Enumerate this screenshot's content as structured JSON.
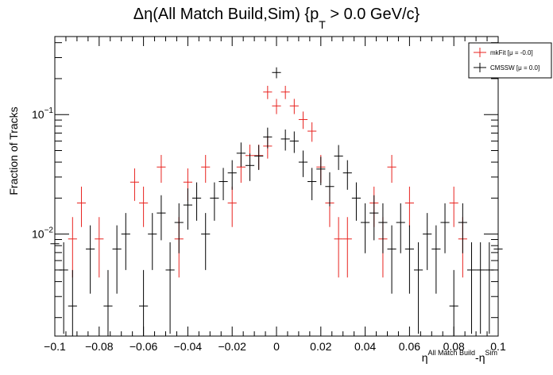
{
  "chart_data": {
    "type": "scatter",
    "title": {
      "prefix": "Δη(All Match Build,Sim) {p",
      "sub": "T",
      "suffix": " > 0.0 GeV/c}"
    },
    "xlabel": {
      "base1": "η",
      "sup1": "All Match Build",
      "mid": "-η",
      "sup2": "Sim"
    },
    "ylabel": "Fraction of Tracks",
    "xlim": [
      -0.1,
      0.1
    ],
    "ylim": [
      0.0014,
      0.45
    ],
    "yscale": "log",
    "x_ticks": [
      "−0.1",
      "−0.08",
      "−0.06",
      "−0.04",
      "−0.02",
      "0",
      "0.02",
      "0.04",
      "0.06",
      "0.08",
      "0.1"
    ],
    "x_tick_values": [
      -0.1,
      -0.08,
      -0.06,
      -0.04,
      -0.02,
      0,
      0.02,
      0.04,
      0.06,
      0.08,
      0.1
    ],
    "y_ticks": [
      {
        "value": 0.1,
        "base": "10",
        "exp": "−1"
      },
      {
        "value": 0.01,
        "base": "10",
        "exp": "−2"
      }
    ],
    "legend_position": "top-right",
    "bin_width": 0.004,
    "series": [
      {
        "name": "mkFit  [μ = -0.0]",
        "color": "#e8231f",
        "points": [
          {
            "x": -0.092,
            "y": 0.0091
          },
          {
            "x": -0.088,
            "y": 0.0182
          },
          {
            "x": -0.08,
            "y": 0.0091
          },
          {
            "x": -0.064,
            "y": 0.0272
          },
          {
            "x": -0.06,
            "y": 0.0182
          },
          {
            "x": -0.052,
            "y": 0.0364
          },
          {
            "x": -0.044,
            "y": 0.0091
          },
          {
            "x": -0.04,
            "y": 0.0272
          },
          {
            "x": -0.032,
            "y": 0.0364
          },
          {
            "x": -0.02,
            "y": 0.0182
          },
          {
            "x": -0.016,
            "y": 0.0364
          },
          {
            "x": -0.012,
            "y": 0.0454
          },
          {
            "x": -0.008,
            "y": 0.0454
          },
          {
            "x": -0.004,
            "y": 0.0545
          },
          {
            "x": -0.004,
            "y": 0.1545
          },
          {
            "x": 0.0,
            "y": 0.1182
          },
          {
            "x": 0.004,
            "y": 0.1545
          },
          {
            "x": 0.008,
            "y": 0.1182
          },
          {
            "x": 0.012,
            "y": 0.0909
          },
          {
            "x": 0.016,
            "y": 0.0727
          },
          {
            "x": 0.02,
            "y": 0.0364
          },
          {
            "x": 0.024,
            "y": 0.0182
          },
          {
            "x": 0.028,
            "y": 0.0091
          },
          {
            "x": 0.032,
            "y": 0.0091
          },
          {
            "x": 0.044,
            "y": 0.0182
          },
          {
            "x": 0.048,
            "y": 0.0091
          },
          {
            "x": 0.052,
            "y": 0.0364
          },
          {
            "x": 0.06,
            "y": 0.0182
          },
          {
            "x": 0.08,
            "y": 0.0182
          },
          {
            "x": 0.084,
            "y": 0.0091
          }
        ]
      },
      {
        "name": "CMSSW  [μ =  0.0]",
        "color": "#000000",
        "points": [
          {
            "x": -0.1,
            "y": 0.0083
          },
          {
            "x": -0.096,
            "y": 0.005
          },
          {
            "x": -0.092,
            "y": 0.0025
          },
          {
            "x": -0.084,
            "y": 0.0075
          },
          {
            "x": -0.076,
            "y": 0.0025
          },
          {
            "x": -0.072,
            "y": 0.0075
          },
          {
            "x": -0.068,
            "y": 0.01
          },
          {
            "x": -0.06,
            "y": 0.0025
          },
          {
            "x": -0.056,
            "y": 0.01
          },
          {
            "x": -0.052,
            "y": 0.015
          },
          {
            "x": -0.048,
            "y": 0.005
          },
          {
            "x": -0.044,
            "y": 0.0125
          },
          {
            "x": -0.04,
            "y": 0.0175
          },
          {
            "x": -0.036,
            "y": 0.02
          },
          {
            "x": -0.032,
            "y": 0.01
          },
          {
            "x": -0.028,
            "y": 0.02
          },
          {
            "x": -0.024,
            "y": 0.0275
          },
          {
            "x": -0.02,
            "y": 0.0325
          },
          {
            "x": -0.016,
            "y": 0.0475
          },
          {
            "x": -0.012,
            "y": 0.0375
          },
          {
            "x": -0.008,
            "y": 0.045
          },
          {
            "x": -0.004,
            "y": 0.065
          },
          {
            "x": 0.0,
            "y": 0.225
          },
          {
            "x": 0.004,
            "y": 0.0625
          },
          {
            "x": 0.008,
            "y": 0.06
          },
          {
            "x": 0.012,
            "y": 0.04
          },
          {
            "x": 0.016,
            "y": 0.0275
          },
          {
            "x": 0.02,
            "y": 0.035
          },
          {
            "x": 0.024,
            "y": 0.025
          },
          {
            "x": 0.028,
            "y": 0.045
          },
          {
            "x": 0.032,
            "y": 0.0325
          },
          {
            "x": 0.036,
            "y": 0.02
          },
          {
            "x": 0.04,
            "y": 0.0125
          },
          {
            "x": 0.044,
            "y": 0.015
          },
          {
            "x": 0.048,
            "y": 0.0125
          },
          {
            "x": 0.052,
            "y": 0.0075
          },
          {
            "x": 0.056,
            "y": 0.0125
          },
          {
            "x": 0.06,
            "y": 0.0075
          },
          {
            "x": 0.064,
            "y": 0.005
          },
          {
            "x": 0.068,
            "y": 0.01
          },
          {
            "x": 0.072,
            "y": 0.0075
          },
          {
            "x": 0.076,
            "y": 0.0125
          },
          {
            "x": 0.08,
            "y": 0.0025
          },
          {
            "x": 0.084,
            "y": 0.0125
          },
          {
            "x": 0.088,
            "y": 0.005
          },
          {
            "x": 0.092,
            "y": 0.005
          },
          {
            "x": 0.096,
            "y": 0.005
          },
          {
            "x": 0.1,
            "y": 0.0075
          }
        ]
      }
    ]
  }
}
